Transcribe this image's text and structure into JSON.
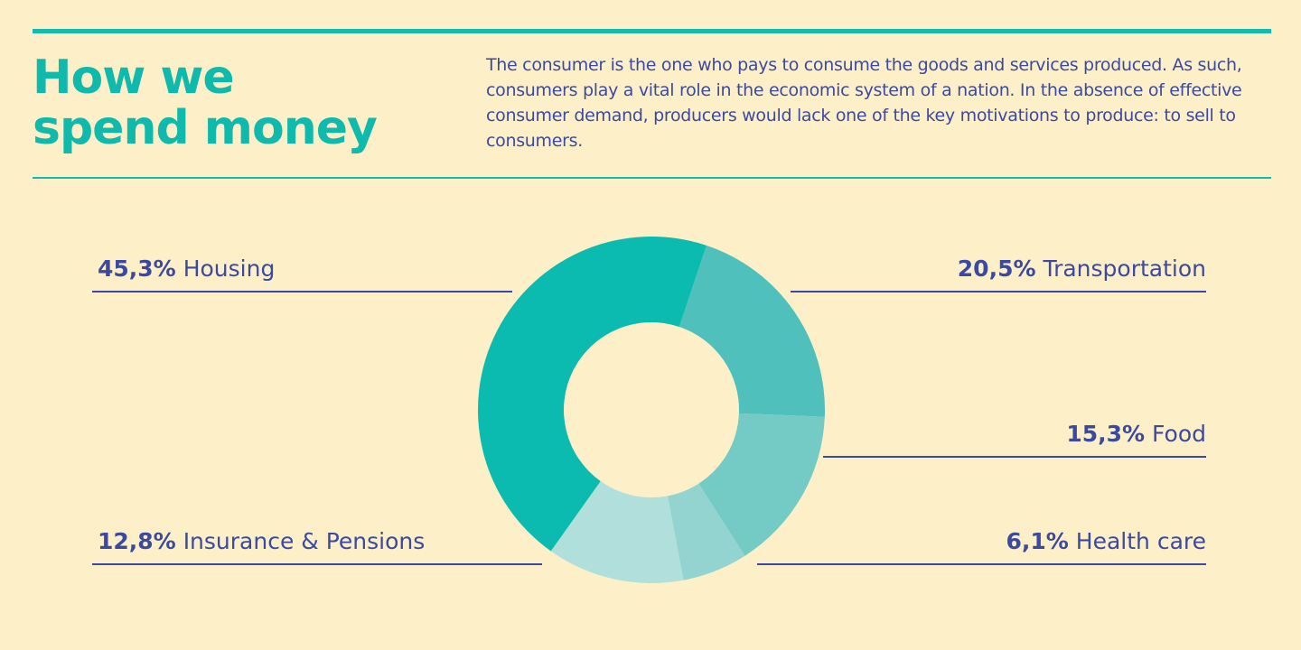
{
  "header": {
    "title_line1": "How we",
    "title_line2": "spend money",
    "intro": "The consumer is the one who pays to consume the goods and services produced. As such, consumers play a vital role in the economic system of a nation. In the absence of effective consumer demand, producers would lack one of the key motivations to produce: to sell to consumers."
  },
  "chart_data": {
    "type": "pie",
    "style": "donut",
    "slices": [
      {
        "label": "Transportation",
        "value": 20.5,
        "value_label": "20,5%",
        "color": "#4fc0bb"
      },
      {
        "label": "Food",
        "value": 15.3,
        "value_label": "15,3%",
        "color": "#74cac5"
      },
      {
        "label": "Health care",
        "value": 6.1,
        "value_label": "6,1%",
        "color": "#94d4d0"
      },
      {
        "label": "Insurance & Pensions",
        "value": 12.8,
        "value_label": "12,8%",
        "color": "#b1e0dc"
      },
      {
        "label": "Housing",
        "value": 45.3,
        "value_label": "45,3%",
        "color": "#0bbbaf"
      }
    ]
  },
  "colors": {
    "background": "#fdf0c8",
    "accent": "#0fb9ac",
    "text": "#3b4aa0"
  }
}
